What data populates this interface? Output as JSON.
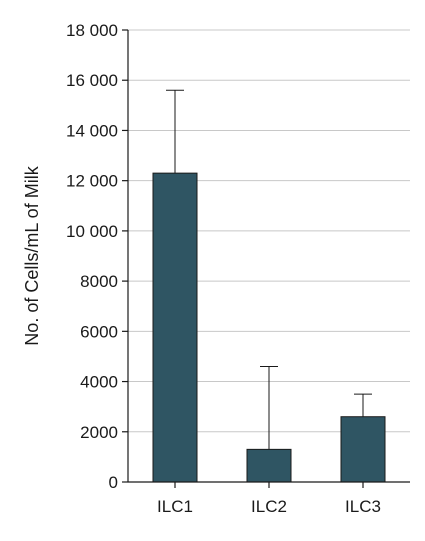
{
  "chart_data": {
    "type": "bar",
    "title": "",
    "xlabel": "",
    "ylabel": "No. of Cells/mL of Milk",
    "categories": [
      "ILC1",
      "ILC2",
      "ILC3"
    ],
    "values": [
      12300,
      1300,
      2600
    ],
    "error_upper": [
      15600,
      4600,
      3500
    ],
    "ylim": [
      0,
      18000
    ],
    "yticks": [
      0,
      2000,
      4000,
      6000,
      8000,
      10000,
      12000,
      14000,
      16000,
      18000
    ],
    "ytick_labels": [
      "0",
      "2000",
      "4000",
      "6000",
      "8000",
      "10 000",
      "12 000",
      "14 000",
      "16 000",
      "18 000"
    ],
    "grid": true,
    "bar_color": "#2f5563"
  }
}
